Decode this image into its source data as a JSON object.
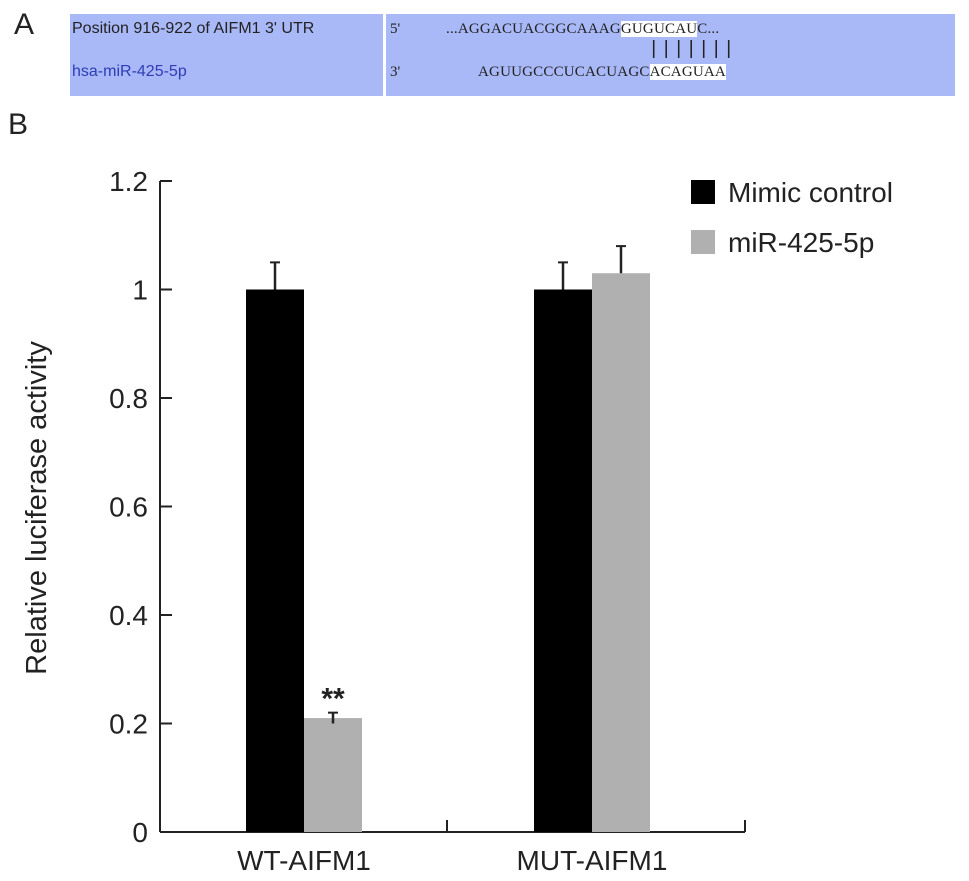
{
  "panel_a": {
    "letter": "A",
    "utr_label": "Position 916-922 of AIFM1 3' UTR",
    "mir_label": "hsa-miR-425-5p",
    "prime_top": "5'",
    "prime_bottom": "3'",
    "top_seq_pre": "...AGGACUACGGCAAAG",
    "top_seq_seed": "GUGUCAU",
    "top_seq_post": "C...",
    "pairing": "|||||||",
    "bottom_seq_pre": "AGUUGCCCUCACUAGC",
    "bottom_seq_seed": "ACAGUAA",
    "colors": {
      "box": "#a9b8f7",
      "mir_label": "#2f3db5",
      "seed_highlight": "#ffffff"
    }
  },
  "panel_b": {
    "letter": "B"
  },
  "chart_data": {
    "type": "bar",
    "categories": [
      "WT-AIFM1",
      "MUT-AIFM1"
    ],
    "series": [
      {
        "name": "Mimic control",
        "values": [
          1.0,
          1.0
        ],
        "errors": [
          0.05,
          0.05
        ],
        "color": "#000000"
      },
      {
        "name": "miR-425-5p",
        "values": [
          0.21,
          1.03
        ],
        "errors": [
          0.01,
          0.05
        ],
        "color": "#b0b0b0"
      }
    ],
    "ylabel": "Relative luciferase activity",
    "ylim": [
      0,
      1.2
    ],
    "yticks": [
      "0",
      "0.2",
      "0.4",
      "0.6",
      "0.8",
      "1",
      "1.2"
    ],
    "annotations": [
      {
        "category": "WT-AIFM1",
        "series": "miR-425-5p",
        "text": "**"
      }
    ],
    "grid": false,
    "legend": "top-right"
  }
}
